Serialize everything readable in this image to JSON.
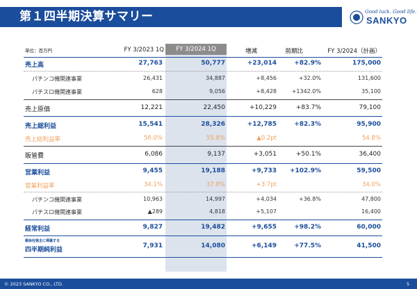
{
  "header": {
    "title": "第１四半期決算サマリー"
  },
  "logo": {
    "tagline": "Good luck. Good life.",
    "wordmark": "SANKYO"
  },
  "table": {
    "unit": "単位：百万円",
    "columns": [
      "FY 3/2023 1Q",
      "FY 3/2024 1Q",
      "増減",
      "前期比",
      "FY 3/2024（計画）"
    ],
    "rows": [
      {
        "label": "売上高",
        "v": [
          "27,763",
          "50,777",
          "+23,014",
          "+82.9%",
          "175,000"
        ]
      },
      {
        "label": "パチンコ機関連事業",
        "v": [
          "26,431",
          "34,887",
          "+8,456",
          "+32.0%",
          "131,600"
        ]
      },
      {
        "label": "パチスロ機関連事業",
        "v": [
          "628",
          "9,056",
          "+8,428",
          "+1342.0%",
          "35,100"
        ]
      },
      {
        "label": "売上原価",
        "v": [
          "12,221",
          "22,450",
          "+10,229",
          "+83.7%",
          "79,100"
        ]
      },
      {
        "label": "売上総利益",
        "v": [
          "15,541",
          "28,326",
          "+12,785",
          "+82.3%",
          "95,900"
        ]
      },
      {
        "label": "売上総利益率",
        "v": [
          "56.0%",
          "55.8%",
          "▲0.2pt",
          "",
          "54.8%"
        ]
      },
      {
        "label": "販管費",
        "v": [
          "6,086",
          "9,137",
          "+3,051",
          "+50.1%",
          "36,400"
        ]
      },
      {
        "label": "営業利益",
        "v": [
          "9,455",
          "19,188",
          "+9,733",
          "+102.9%",
          "59,500"
        ]
      },
      {
        "label": "営業利益率",
        "v": [
          "34.1%",
          "37.8%",
          "+3.7pt",
          "",
          "34.0%"
        ]
      },
      {
        "label": "パチンコ機関連事業",
        "v": [
          "10,963",
          "14,997",
          "+4,034",
          "+36.8%",
          "47,800"
        ]
      },
      {
        "label": "パチスロ機関連事業",
        "v": [
          "▲289",
          "4,818",
          "+5,107",
          "",
          "16,400"
        ]
      },
      {
        "label": "経常利益",
        "v": [
          "9,827",
          "19,482",
          "+9,655",
          "+98.2%",
          "60,000"
        ]
      },
      {
        "label_small": "親会社株主に帰属する",
        "label": "四半期純利益",
        "v": [
          "7,931",
          "14,080",
          "+6,149",
          "+77.5%",
          "41,500"
        ]
      }
    ]
  },
  "footer": {
    "copyright": "© 2023 SANKYO CO., LTD.",
    "page": "5"
  },
  "colors": {
    "brand": "#1a4d9b",
    "highlight": "#dce3ed",
    "ratio": "#f0a15e"
  }
}
